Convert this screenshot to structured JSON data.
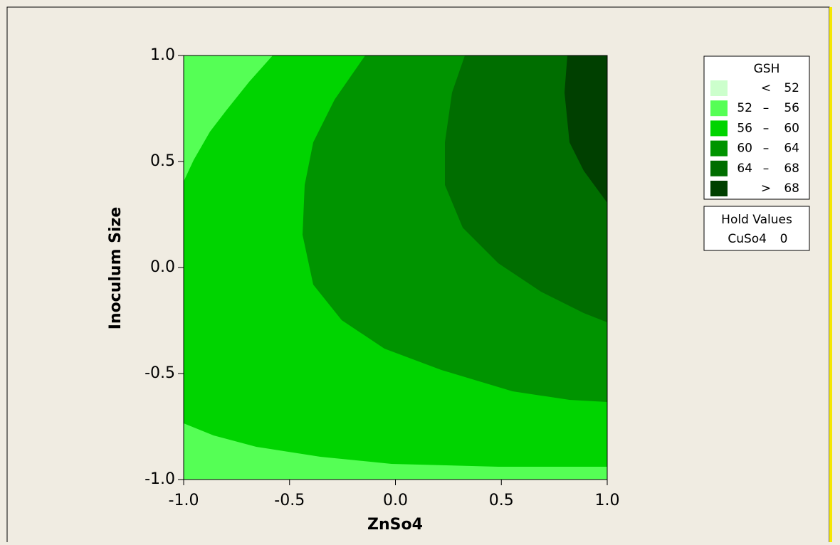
{
  "chart_data": {
    "type": "contour",
    "xlabel": "ZnSo4",
    "ylabel": "Inoculum Size",
    "xlim": [
      -1,
      1
    ],
    "ylim": [
      -1,
      1
    ],
    "xticks": [
      {
        "value": -1,
        "label": "-1.0"
      },
      {
        "value": -0.5,
        "label": "-0.5"
      },
      {
        "value": 0,
        "label": "0.0"
      },
      {
        "value": 0.5,
        "label": "0.5"
      },
      {
        "value": 1,
        "label": "1.0"
      }
    ],
    "yticks": [
      {
        "value": -1,
        "label": "-1.0"
      },
      {
        "value": -0.5,
        "label": "-0.5"
      },
      {
        "value": 0,
        "label": "0.0"
      },
      {
        "value": 0.5,
        "label": "0.5"
      },
      {
        "value": 1,
        "label": "1.0"
      }
    ],
    "levels": [
      52,
      56,
      60,
      64,
      68
    ],
    "legend": {
      "title": "GSH",
      "items": [
        {
          "low": "",
          "sep": "<",
          "high": "52",
          "color": "#ccffcc"
        },
        {
          "low": "52",
          "sep": "–",
          "high": "56",
          "color": "#55ff55"
        },
        {
          "low": "56",
          "sep": "–",
          "high": "60",
          "color": "#00d400"
        },
        {
          "low": "60",
          "sep": "–",
          "high": "64",
          "color": "#009400"
        },
        {
          "low": "64",
          "sep": "–",
          "high": "68",
          "color": "#006e00"
        },
        {
          "low": "",
          "sep": ">",
          "high": "68",
          "color": "#004000"
        }
      ]
    },
    "hold_values": {
      "title": "Hold Values",
      "name": "CuSo4",
      "value": 0
    }
  }
}
